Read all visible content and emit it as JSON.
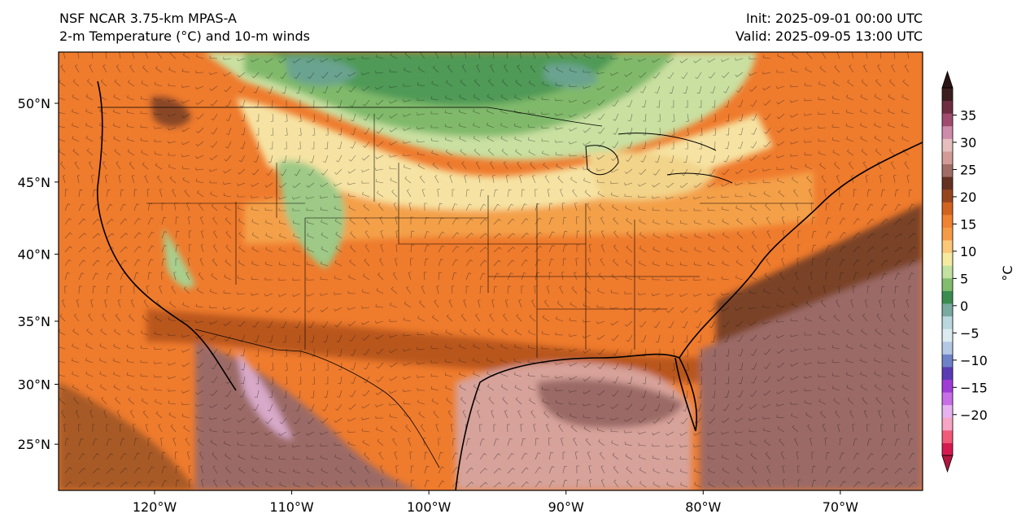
{
  "title": {
    "line1": "NSF NCAR 3.75-km MPAS-A",
    "line2": "2-m Temperature (°C) and 10-m winds",
    "init": "Init: 2025-09-01 00:00 UTC",
    "valid": "Valid: 2025-09-05 13:00 UTC"
  },
  "map": {
    "lon_range": [
      -127,
      -64
    ],
    "lat_range": [
      21,
      53
    ],
    "lat_ticks": [
      "50°N",
      "45°N",
      "40°N",
      "35°N",
      "30°N",
      "25°N"
    ],
    "lat_values": [
      50,
      45,
      40,
      35,
      30,
      25
    ],
    "lon_ticks": [
      "120°W",
      "110°W",
      "100°W",
      "90°W",
      "80°W",
      "70°W"
    ],
    "lon_values": [
      -120,
      -110,
      -100,
      -90,
      -80,
      -70
    ],
    "colors": {
      "deep_orange": "#f07a2a",
      "orange": "#ee8b3c",
      "light_orange": "#f6b15c",
      "yellow": "#f8e8a8",
      "light_green": "#c9e0a1",
      "green": "#7fb867",
      "dark_green": "#4e9a54",
      "teal": "#6aa38f",
      "brown": "#7a4226",
      "mauve": "#9c6b66",
      "pink": "#d8a39c",
      "lilac": "#d6a3c9"
    }
  },
  "colorbar": {
    "label": "°C",
    "tick_labels": [
      "35",
      "30",
      "25",
      "20",
      "15",
      "10",
      "5",
      "0",
      "−5",
      "−10",
      "−15",
      "−20"
    ],
    "tick_values": [
      35,
      30,
      25,
      20,
      15,
      10,
      5,
      0,
      -5,
      -10,
      -15,
      -20
    ],
    "range": [
      -27.5,
      40
    ],
    "colors": [
      "#d61a4f",
      "#f05a78",
      "#f7a5c4",
      "#e6b3f0",
      "#c86ee6",
      "#a03cd6",
      "#5a3cb4",
      "#6e82c8",
      "#b4c8e6",
      "#dcebf0",
      "#b9d7dc",
      "#78aaa0",
      "#3c8c50",
      "#82bc6e",
      "#c3e1a0",
      "#f5eba0",
      "#fac878",
      "#f59b46",
      "#f08232",
      "#d2641e",
      "#96461e",
      "#643223",
      "#a06e64",
      "#d29b96",
      "#e6bebe",
      "#cd8caa",
      "#a04b6e",
      "#6e2d41",
      "#3c1e1e"
    ]
  }
}
